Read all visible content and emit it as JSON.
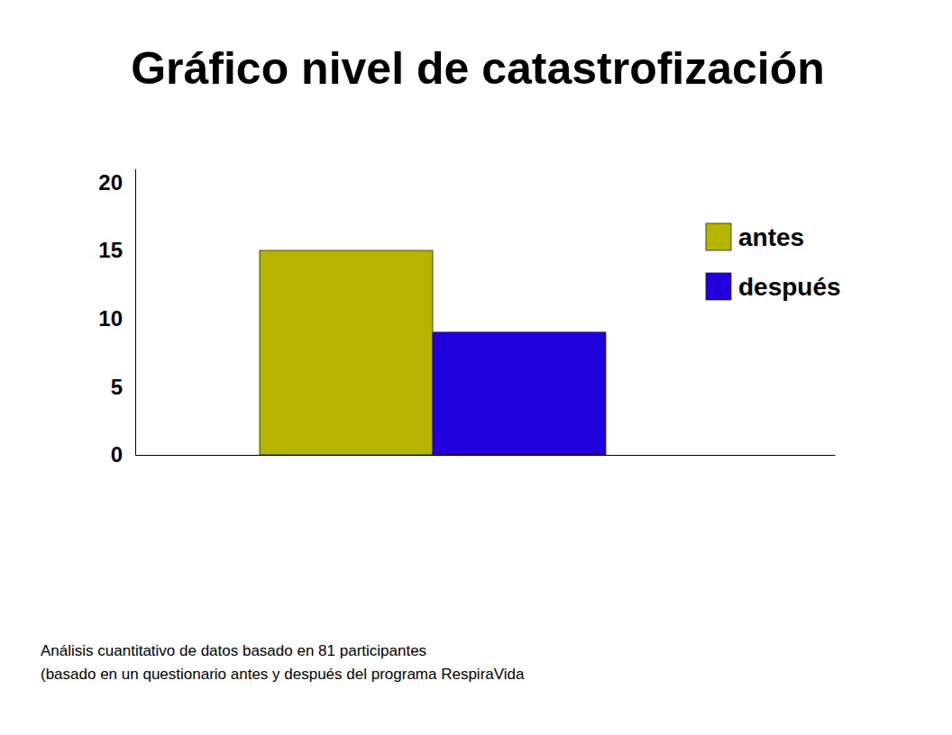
{
  "chart_data": {
    "type": "bar",
    "title": "Gráfico nivel de catastrofización",
    "categories": [
      null
    ],
    "series": [
      {
        "name": "antes",
        "color": "#b5b500",
        "values": [
          15
        ]
      },
      {
        "name": "después",
        "color": "#2200dd",
        "values": [
          9
        ]
      }
    ],
    "ylim": [
      0,
      21
    ],
    "yticks": [
      0,
      5,
      10,
      15,
      20
    ],
    "grid": false,
    "legend": "top-right",
    "tick_labels": "y",
    "annotations": [
      "Análisis cuantitativo de datos basado en 81 participantes",
      "(basado en un questionario antes y después del programa RespiraVida"
    ]
  }
}
